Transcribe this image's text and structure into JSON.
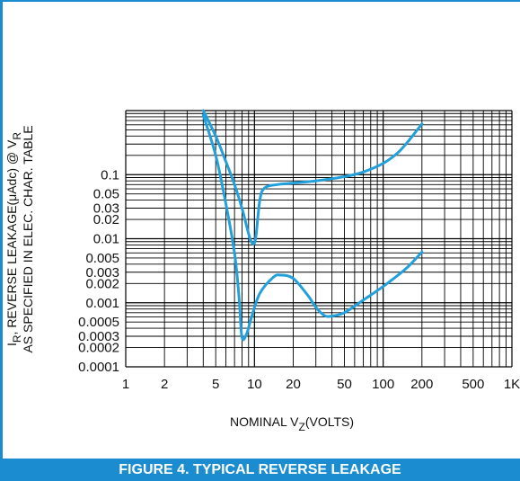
{
  "caption": "FIGURE 4. TYPICAL REVERSE LEAKAGE",
  "colors": {
    "accent": "#1a8ccf",
    "curve": "#22a0dc",
    "grid": "#000000"
  },
  "chart_data": {
    "type": "line",
    "x_scale": "log",
    "y_scale": "log",
    "xlim": [
      1,
      1000
    ],
    "ylim": [
      0.0001,
      1
    ],
    "grid": true,
    "xlabel": {
      "main": "NOMINAL V",
      "sub": "Z",
      "tail": "(VOLTS)"
    },
    "ylabel": {
      "line1_main": "I",
      "line1_sub": "R",
      "line1_text": ", REVERSE LEAKAGE(μAdc) @ V",
      "line1_sub2": "R",
      "line2": "AS SPECIFIED IN ELEC. CHAR. TABLE"
    },
    "x_ticks": [
      {
        "value": 1,
        "label": "1"
      },
      {
        "value": 2,
        "label": "2"
      },
      {
        "value": 5,
        "label": "5"
      },
      {
        "value": 10,
        "label": "10"
      },
      {
        "value": 20,
        "label": "20"
      },
      {
        "value": 50,
        "label": "50"
      },
      {
        "value": 100,
        "label": "100"
      },
      {
        "value": 200,
        "label": "200"
      },
      {
        "value": 500,
        "label": "500"
      },
      {
        "value": 1000,
        "label": "1K"
      }
    ],
    "y_ticks": [
      {
        "value": 0.1,
        "label": "0.1"
      },
      {
        "value": 0.05,
        "label": "0.05"
      },
      {
        "value": 0.03,
        "label": "0.03"
      },
      {
        "value": 0.02,
        "label": "0.02"
      },
      {
        "value": 0.01,
        "label": "0.01"
      },
      {
        "value": 0.005,
        "label": "0.005"
      },
      {
        "value": 0.003,
        "label": "0.003"
      },
      {
        "value": 0.002,
        "label": "0.002"
      },
      {
        "value": 0.001,
        "label": "0.001"
      },
      {
        "value": 0.0005,
        "label": "0.0005"
      },
      {
        "value": 0.0003,
        "label": "0.0003"
      },
      {
        "value": 0.0002,
        "label": "0.0002"
      },
      {
        "value": 0.0001,
        "label": "0.0001"
      }
    ],
    "series": [
      {
        "points": [
          [
            4,
            1
          ],
          [
            5,
            0.4
          ],
          [
            6,
            0.16
          ],
          [
            7,
            0.07
          ],
          [
            8,
            0.03
          ],
          [
            9,
            0.012
          ],
          [
            9.6,
            0.0085
          ],
          [
            10.2,
            0.01
          ],
          [
            11,
            0.04
          ],
          [
            12,
            0.062
          ],
          [
            15,
            0.07
          ],
          [
            20,
            0.074
          ],
          [
            30,
            0.08
          ],
          [
            50,
            0.093
          ],
          [
            70,
            0.11
          ],
          [
            100,
            0.15
          ],
          [
            130,
            0.22
          ],
          [
            160,
            0.35
          ],
          [
            200,
            0.62
          ]
        ]
      },
      {
        "points": [
          [
            4,
            0.85
          ],
          [
            5,
            0.2
          ],
          [
            6,
            0.035
          ],
          [
            7,
            0.006
          ],
          [
            7.6,
            0.0012
          ],
          [
            8,
            0.00029
          ],
          [
            8.7,
            0.00033
          ],
          [
            9.5,
            0.0006
          ],
          [
            11,
            0.0014
          ],
          [
            14,
            0.0025
          ],
          [
            16,
            0.0027
          ],
          [
            20,
            0.0024
          ],
          [
            26,
            0.0013
          ],
          [
            30,
            0.00085
          ],
          [
            35,
            0.00063
          ],
          [
            40,
            0.00062
          ],
          [
            50,
            0.0007
          ],
          [
            70,
            0.0011
          ],
          [
            100,
            0.0018
          ],
          [
            150,
            0.0034
          ],
          [
            200,
            0.0062
          ]
        ]
      }
    ]
  }
}
